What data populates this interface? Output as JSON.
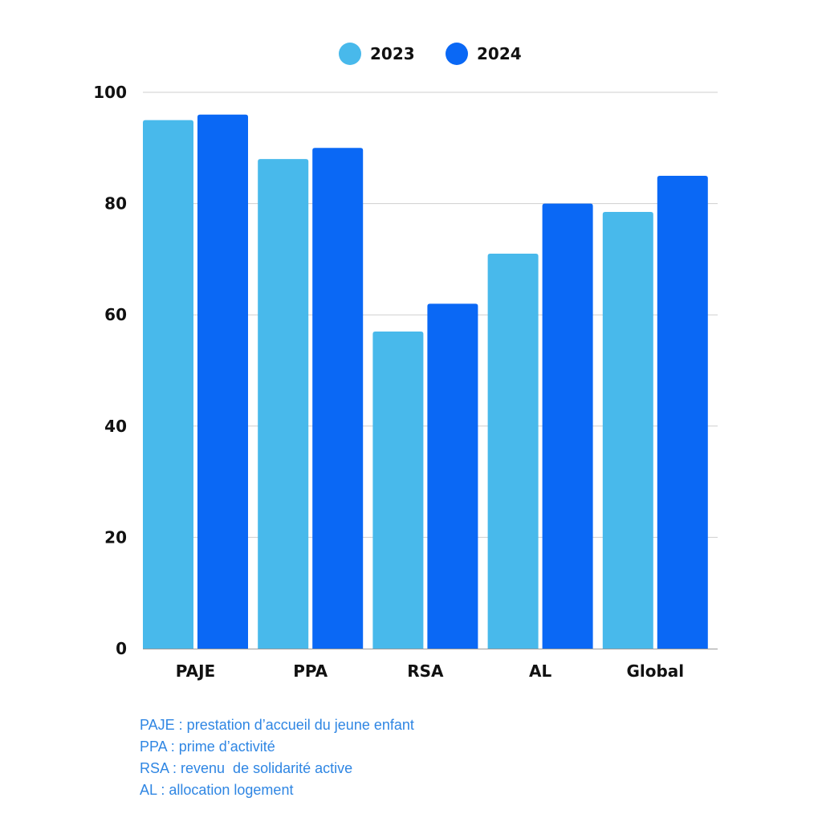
{
  "chart_data": {
    "type": "bar",
    "categories": [
      "PAJE",
      "PPA",
      "RSA",
      "AL",
      "Global"
    ],
    "series": [
      {
        "name": "2023",
        "values": [
          95,
          88,
          57,
          71,
          78.5
        ],
        "color": "#48b9eb"
      },
      {
        "name": "2024",
        "values": [
          96,
          90,
          62,
          80,
          85
        ],
        "color": "#0a68f5"
      }
    ],
    "title": "",
    "xlabel": "",
    "ylabel": "",
    "ylim": [
      0,
      100
    ],
    "yticks": [
      0,
      20,
      40,
      60,
      80,
      100
    ],
    "grid": true,
    "legend": "top-center"
  },
  "notes": [
    "PAJE : prestation d’accueil du jeune enfant",
    "PPA : prime d’activité",
    "RSA : revenu  de solidarité active",
    "AL : allocation logement"
  ]
}
